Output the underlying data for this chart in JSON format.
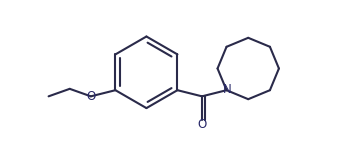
{
  "bg_color": "#ffffff",
  "bond_color": "#2a2a4a",
  "label_color": "#2a2a6a",
  "line_width": 1.5,
  "font_size": 8.5,
  "figsize": [
    3.44,
    1.48
  ],
  "dpi": 100,
  "xlim": [
    0.0,
    9.5
  ],
  "ylim": [
    0.5,
    4.8
  ]
}
